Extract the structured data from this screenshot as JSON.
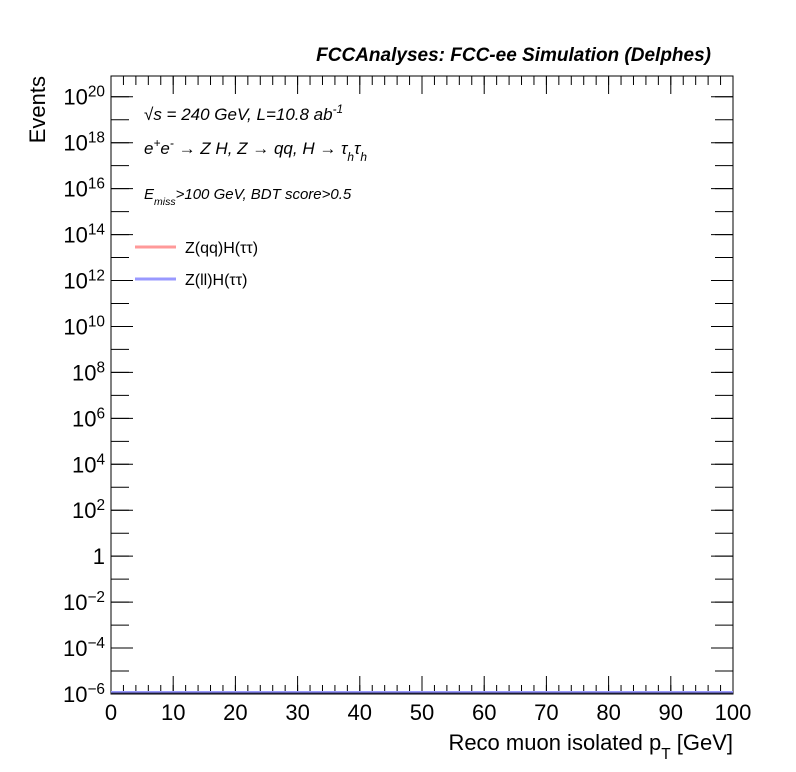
{
  "chart_data": {
    "type": "line",
    "title": "FCCAnalyses: FCC-ee Simulation (Delphes)",
    "annotations": [
      [
        {
          "text": "√s = 240 GeV, L=10.8 ab"
        },
        {
          "text": "-1",
          "pos": "sup"
        }
      ],
      [
        {
          "text": "e"
        },
        {
          "text": "+",
          "pos": "sup"
        },
        {
          "text": "e"
        },
        {
          "text": "-",
          "pos": "sup"
        },
        {
          "text": " → Z H, Z  → qq, H  → τ"
        },
        {
          "text": "h",
          "pos": "sub"
        },
        {
          "text": "τ"
        },
        {
          "text": "h",
          "pos": "sub"
        }
      ],
      [
        {
          "text": "E"
        },
        {
          "text": "miss",
          "pos": "sub"
        },
        {
          "text": ">100 GeV, BDT score>0.5"
        }
      ]
    ],
    "x_label": [
      {
        "text": "Reco muon isolated p"
      },
      {
        "text": "T",
        "pos": "sub"
      },
      {
        "text": " [GeV]"
      }
    ],
    "y_label": "Events",
    "series": [
      {
        "name": "Z(qq)H(ττ)",
        "color": "#ff9999"
      },
      {
        "name": "Z(ll)H(ττ)",
        "color": "#9999ff"
      }
    ],
    "xlim": [
      0,
      100
    ],
    "xticks": [
      0,
      10,
      20,
      30,
      40,
      50,
      60,
      70,
      80,
      90,
      100
    ],
    "ylim": [
      1e-06,
      8e+20
    ],
    "log_y": true,
    "yticks": [
      {
        "value": 1e-06,
        "label": "10^-6"
      },
      {
        "value": 0.0001,
        "label": "10^-4"
      },
      {
        "value": 0.01,
        "label": "10^-2"
      },
      1,
      {
        "value": 100,
        "label": "10^2"
      },
      {
        "value": 10000.0,
        "label": "10^4"
      },
      {
        "value": 1000000.0,
        "label": "10^6"
      },
      {
        "value": 100000000.0,
        "label": "10^8"
      },
      {
        "value": 10000000000.0,
        "label": "10^10"
      },
      {
        "value": 1000000000000.0,
        "label": "10^12"
      },
      {
        "value": 100000000000000.0,
        "label": "10^14"
      },
      {
        "value": 1e+16,
        "label": "10^16"
      },
      {
        "value": 1e+18,
        "label": "10^18"
      },
      {
        "value": 1e+20,
        "label": "10^20"
      }
    ]
  }
}
